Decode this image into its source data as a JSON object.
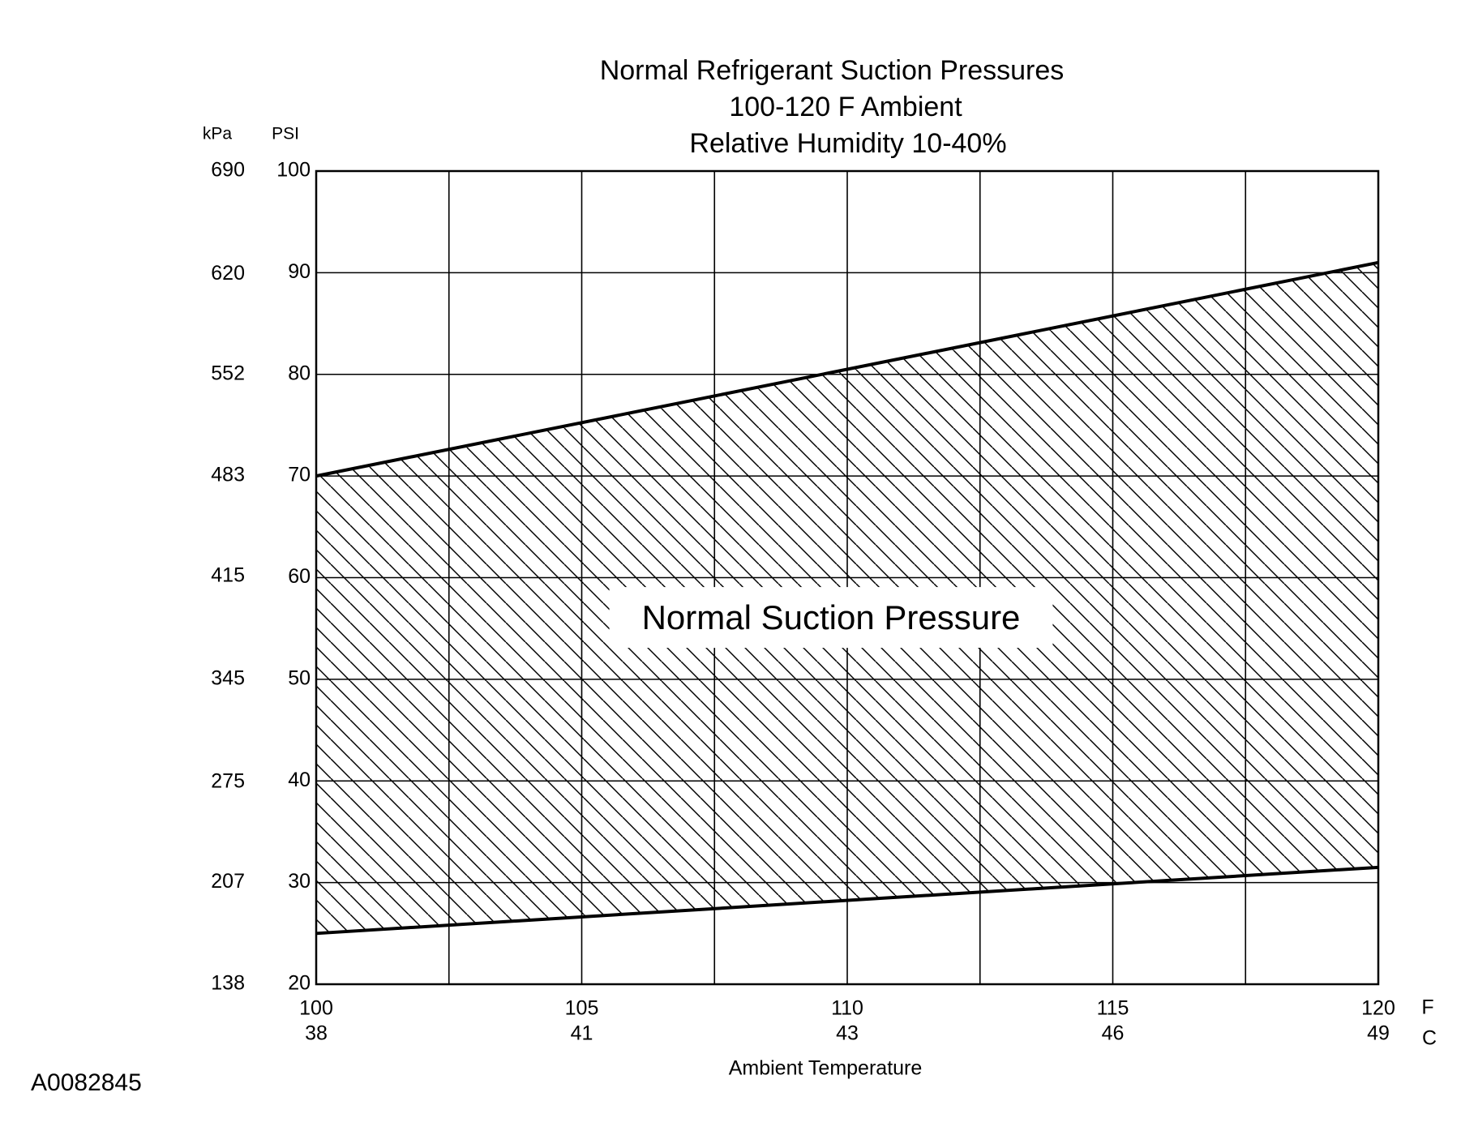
{
  "chart_data": {
    "type": "band",
    "title": "Normal  Refrigerant  Suction  Pressures",
    "subtitle": [
      "100-120 F Ambient",
      "Relative Humidity 10-40%"
    ],
    "ylabel": "PSI",
    "y2label": "kPa",
    "xlabel": "Ambient Temperature",
    "x_unit": "F",
    "x2_unit": "C",
    "annotation": "Normal Suction Pressure",
    "footnote": "A0082845",
    "x": [
      100,
      120
    ],
    "series": [
      {
        "color": "#000000",
        "values": [
          25,
          31.5
        ]
      },
      {
        "color": "#000000",
        "values": [
          70,
          91
        ]
      }
    ],
    "xlim": [
      100,
      120
    ],
    "xticks": [
      100,
      105,
      110,
      115,
      120
    ],
    "x_minor_ticks": [
      102.5,
      107.5,
      112.5,
      117.5
    ],
    "x2ticks": [
      {
        "value": 100,
        "label": "38"
      },
      {
        "value": 105,
        "label": "41"
      },
      {
        "value": 110,
        "label": "43"
      },
      {
        "value": 115,
        "label": "46"
      },
      {
        "value": 120,
        "label": "49"
      }
    ],
    "ylim": [
      20,
      100
    ],
    "yticks": [
      20,
      30,
      40,
      50,
      60,
      70,
      80,
      90,
      100
    ],
    "y2lim": [
      138,
      690
    ],
    "y2ticks": [
      138,
      207,
      275,
      345,
      415,
      483,
      552,
      620,
      690
    ],
    "grid": true,
    "hatch": true
  }
}
